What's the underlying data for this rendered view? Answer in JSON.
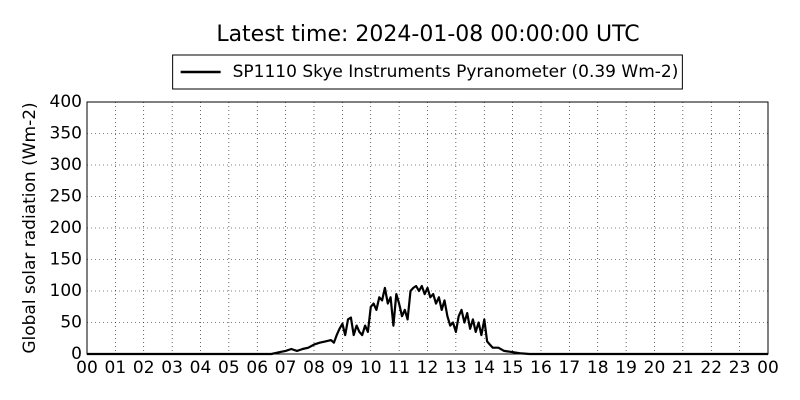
{
  "chart_data": {
    "type": "line",
    "title": "Latest time: 2024-01-08 00:00:00 UTC",
    "ylabel": "Global solar radiation (Wm-2)",
    "x": [
      0,
      6.5,
      6.8,
      7.0,
      7.2,
      7.4,
      7.6,
      7.8,
      8.0,
      8.2,
      8.4,
      8.6,
      8.7,
      8.8,
      8.9,
      9.0,
      9.1,
      9.2,
      9.3,
      9.4,
      9.5,
      9.6,
      9.7,
      9.8,
      9.9,
      10.0,
      10.1,
      10.2,
      10.3,
      10.4,
      10.5,
      10.6,
      10.7,
      10.8,
      10.9,
      11.0,
      11.1,
      11.2,
      11.3,
      11.4,
      11.5,
      11.6,
      11.7,
      11.8,
      11.9,
      12.0,
      12.1,
      12.2,
      12.3,
      12.4,
      12.5,
      12.6,
      12.7,
      12.8,
      12.9,
      13.0,
      13.1,
      13.2,
      13.3,
      13.4,
      13.5,
      13.6,
      13.7,
      13.8,
      13.9,
      14.0,
      14.1,
      14.2,
      14.3,
      14.5,
      14.7,
      15.0,
      15.3,
      15.6,
      24
    ],
    "series": [
      {
        "name": "SP1110 Skye Instruments Pyranometer (0.39 Wm-2)",
        "color": "#000000",
        "values": [
          0,
          0,
          3,
          5,
          8,
          5,
          8,
          10,
          15,
          18,
          20,
          22,
          18,
          30,
          40,
          48,
          30,
          55,
          58,
          30,
          45,
          35,
          30,
          45,
          35,
          75,
          80,
          70,
          90,
          85,
          105,
          80,
          90,
          45,
          95,
          80,
          60,
          70,
          55,
          100,
          105,
          108,
          100,
          108,
          95,
          105,
          90,
          95,
          80,
          90,
          70,
          85,
          60,
          45,
          50,
          35,
          60,
          70,
          50,
          65,
          40,
          55,
          35,
          50,
          30,
          55,
          20,
          15,
          10,
          10,
          5,
          3,
          1,
          0,
          0
        ]
      }
    ],
    "xlim": [
      0,
      24
    ],
    "xticks": [
      {
        "value": 0,
        "label": "00"
      },
      {
        "value": 1,
        "label": "01"
      },
      {
        "value": 2,
        "label": "02"
      },
      {
        "value": 3,
        "label": "03"
      },
      {
        "value": 4,
        "label": "04"
      },
      {
        "value": 5,
        "label": "05"
      },
      {
        "value": 6,
        "label": "06"
      },
      {
        "value": 7,
        "label": "07"
      },
      {
        "value": 8,
        "label": "08"
      },
      {
        "value": 9,
        "label": "09"
      },
      {
        "value": 10,
        "label": "10"
      },
      {
        "value": 11,
        "label": "11"
      },
      {
        "value": 12,
        "label": "12"
      },
      {
        "value": 13,
        "label": "13"
      },
      {
        "value": 14,
        "label": "14"
      },
      {
        "value": 15,
        "label": "15"
      },
      {
        "value": 16,
        "label": "16"
      },
      {
        "value": 17,
        "label": "17"
      },
      {
        "value": 18,
        "label": "18"
      },
      {
        "value": 19,
        "label": "19"
      },
      {
        "value": 20,
        "label": "20"
      },
      {
        "value": 21,
        "label": "21"
      },
      {
        "value": 22,
        "label": "22"
      },
      {
        "value": 23,
        "label": "23"
      },
      {
        "value": 24,
        "label": "00"
      }
    ],
    "ylim": [
      0,
      400
    ],
    "yticks": [
      0,
      50,
      100,
      150,
      200,
      250,
      300,
      350,
      400
    ],
    "grid": true,
    "legend": "upper center"
  }
}
